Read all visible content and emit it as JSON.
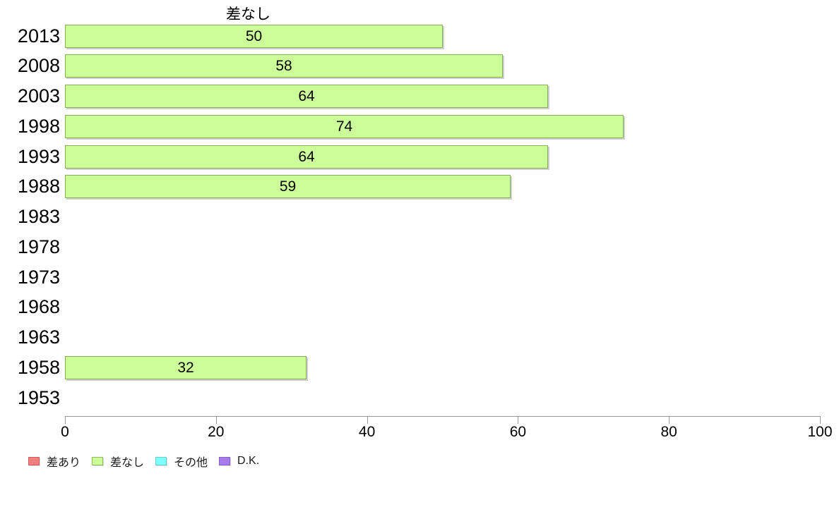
{
  "chart_data": {
    "type": "bar",
    "orientation": "horizontal",
    "title": "差なし",
    "categories": [
      "2013",
      "2008",
      "2003",
      "1998",
      "1993",
      "1988",
      "1983",
      "1978",
      "1973",
      "1968",
      "1963",
      "1958",
      "1953"
    ],
    "values": [
      50,
      58,
      64,
      74,
      64,
      59,
      null,
      null,
      null,
      null,
      null,
      32,
      null
    ],
    "xlabel": "",
    "ylabel": "",
    "xlim": [
      0,
      100
    ],
    "x_ticks": [
      0,
      20,
      40,
      60,
      80,
      100
    ],
    "grid": false,
    "bar_color": "#ccff99",
    "bar_border_color": "#86ae52",
    "axis_color": "#999999",
    "legend_position": "bottom-left",
    "legend": [
      {
        "label": "差あり",
        "color": "#f08080",
        "border": "#cf5f5f"
      },
      {
        "label": "差なし",
        "color": "#ccff99",
        "border": "#8fbe58"
      },
      {
        "label": "その他",
        "color": "#80ffff",
        "border": "#63cfcf"
      },
      {
        "label": "D.K.",
        "color": "#a87ce8",
        "border": "#8b5fd0"
      }
    ]
  }
}
